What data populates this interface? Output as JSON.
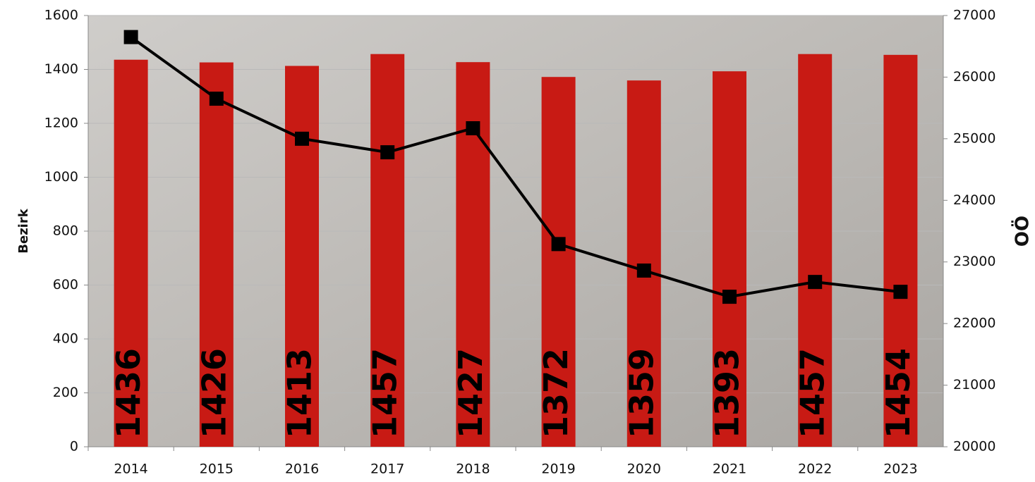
{
  "chart_data": {
    "type": "bar_line",
    "categories": [
      "2014",
      "2015",
      "2016",
      "2017",
      "2018",
      "2019",
      "2020",
      "2021",
      "2022",
      "2023"
    ],
    "series": [
      {
        "type": "bar",
        "color": "#c81a14",
        "values": [
          1436,
          1426,
          1413,
          1457,
          1427,
          1372,
          1359,
          1393,
          1457,
          1454
        ]
      },
      {
        "type": "line",
        "color": "#000000",
        "axis": "y2",
        "values": [
          26650,
          25650,
          25000,
          24780,
          25170,
          23290,
          22860,
          22435,
          22675,
          22515
        ]
      }
    ],
    "ylabel": "Bezirk",
    "y2label": "OÖ",
    "ylim": [
      0,
      1600
    ],
    "yticks": [
      0,
      200,
      400,
      600,
      800,
      1000,
      1200,
      1400,
      1600
    ],
    "y2lim": [
      20000,
      27000
    ],
    "y2ticks": [
      20000,
      21000,
      22000,
      23000,
      24000,
      25000,
      26000,
      27000
    ],
    "grid": true
  }
}
